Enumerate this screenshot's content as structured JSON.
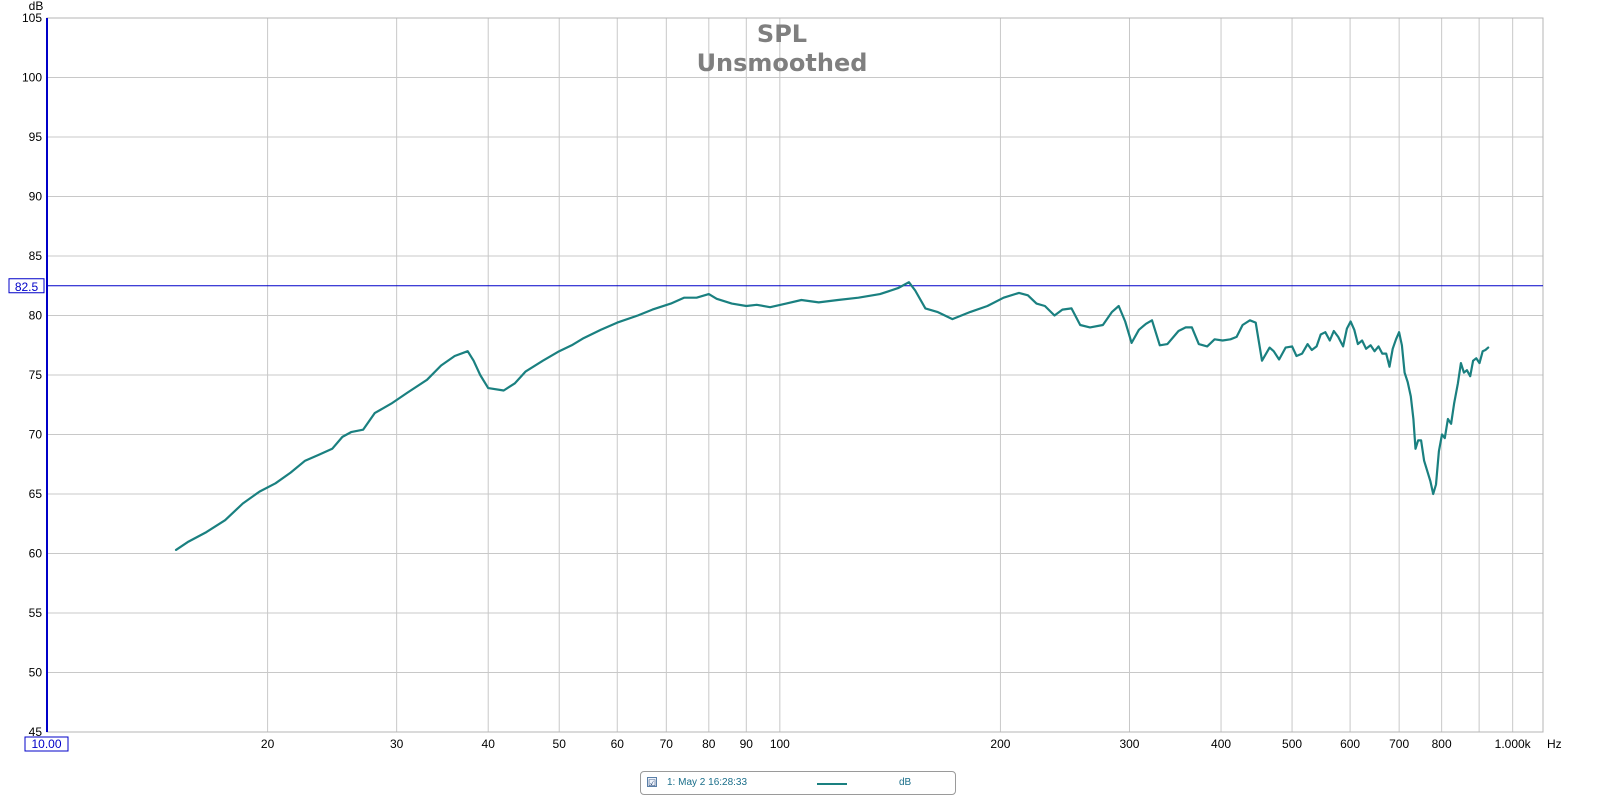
{
  "legend": {
    "checkbox": "☑",
    "name": "1: May 2 16:28:33",
    "unit": "dB"
  },
  "chart_data": {
    "type": "line",
    "title": "SPL",
    "subtitle": "Unsmoothed",
    "ylabel": "dB",
    "xunit": "Hz",
    "xscale": "log",
    "xlim": [
      10,
      1100
    ],
    "ylim": [
      45,
      105
    ],
    "yticks": [
      105,
      100,
      95,
      90,
      85,
      80,
      75,
      70,
      65,
      60,
      55,
      50,
      45
    ],
    "xtick_labels": [
      {
        "v": 20,
        "t": "20"
      },
      {
        "v": 30,
        "t": "30"
      },
      {
        "v": 40,
        "t": "40"
      },
      {
        "v": 50,
        "t": "50"
      },
      {
        "v": 60,
        "t": "60"
      },
      {
        "v": 70,
        "t": "70"
      },
      {
        "v": 80,
        "t": "80"
      },
      {
        "v": 90,
        "t": "90"
      },
      {
        "v": 100,
        "t": "100"
      },
      {
        "v": 200,
        "t": "200"
      },
      {
        "v": 300,
        "t": "300"
      },
      {
        "v": 400,
        "t": "400"
      },
      {
        "v": 500,
        "t": "500"
      },
      {
        "v": 600,
        "t": "600"
      },
      {
        "v": 700,
        "t": "700"
      },
      {
        "v": 800,
        "t": "800"
      },
      {
        "v": 1000,
        "t": "1.000k"
      }
    ],
    "grid_x": [
      20,
      30,
      40,
      50,
      60,
      70,
      80,
      90,
      100,
      200,
      300,
      400,
      500,
      600,
      700,
      800,
      900,
      1000
    ],
    "cursor": {
      "y": 82.5,
      "y_label": "82.5",
      "x_label": "10.00",
      "color": "#0000c8"
    },
    "grid": true,
    "legend_position": "bottom-center",
    "series": [
      {
        "color": "#1a8080",
        "points": [
          [
            15.0,
            60.3
          ],
          [
            15.6,
            61.0
          ],
          [
            16.5,
            61.8
          ],
          [
            17.5,
            62.8
          ],
          [
            18.5,
            64.2
          ],
          [
            19.5,
            65.2
          ],
          [
            20.5,
            65.9
          ],
          [
            21.5,
            66.8
          ],
          [
            22.5,
            67.8
          ],
          [
            23.5,
            68.3
          ],
          [
            24.5,
            68.8
          ],
          [
            25.3,
            69.8
          ],
          [
            26.0,
            70.2
          ],
          [
            27.0,
            70.4
          ],
          [
            28.0,
            71.8
          ],
          [
            29.5,
            72.6
          ],
          [
            31.0,
            73.5
          ],
          [
            33.0,
            74.6
          ],
          [
            34.5,
            75.8
          ],
          [
            36.0,
            76.6
          ],
          [
            37.5,
            77.0
          ],
          [
            38.2,
            76.2
          ],
          [
            39.0,
            75.0
          ],
          [
            40.0,
            73.9
          ],
          [
            42.0,
            73.7
          ],
          [
            43.5,
            74.3
          ],
          [
            45.0,
            75.3
          ],
          [
            47.5,
            76.2
          ],
          [
            50.0,
            77.0
          ],
          [
            52.0,
            77.5
          ],
          [
            54.0,
            78.1
          ],
          [
            57.0,
            78.8
          ],
          [
            60.0,
            79.4
          ],
          [
            64.0,
            80.0
          ],
          [
            67.0,
            80.5
          ],
          [
            71.0,
            81.0
          ],
          [
            74.0,
            81.5
          ],
          [
            77.0,
            81.5
          ],
          [
            80.0,
            81.8
          ],
          [
            82.0,
            81.4
          ],
          [
            86.0,
            81.0
          ],
          [
            90.0,
            80.8
          ],
          [
            93.0,
            80.9
          ],
          [
            97.0,
            80.7
          ],
          [
            102.0,
            81.0
          ],
          [
            107.0,
            81.3
          ],
          [
            113.0,
            81.1
          ],
          [
            120.0,
            81.3
          ],
          [
            128.0,
            81.5
          ],
          [
            137.0,
            81.8
          ],
          [
            145.0,
            82.3
          ],
          [
            150.0,
            82.8
          ],
          [
            153.0,
            82.1
          ],
          [
            158.0,
            80.6
          ],
          [
            164.0,
            80.3
          ],
          [
            172.0,
            79.7
          ],
          [
            182.0,
            80.3
          ],
          [
            192.0,
            80.8
          ],
          [
            202.0,
            81.5
          ],
          [
            212.0,
            81.9
          ],
          [
            218.0,
            81.7
          ],
          [
            224.0,
            81.0
          ],
          [
            230.0,
            80.8
          ],
          [
            237.0,
            80.0
          ],
          [
            243.0,
            80.5
          ],
          [
            250.0,
            80.6
          ],
          [
            257.0,
            79.2
          ],
          [
            265.0,
            79.0
          ],
          [
            276.0,
            79.2
          ],
          [
            284.0,
            80.3
          ],
          [
            290.0,
            80.8
          ],
          [
            296.0,
            79.5
          ],
          [
            302.0,
            77.7
          ],
          [
            309.0,
            78.8
          ],
          [
            316.0,
            79.3
          ],
          [
            322.0,
            79.6
          ],
          [
            330.0,
            77.5
          ],
          [
            338.0,
            77.6
          ],
          [
            350.0,
            78.7
          ],
          [
            358.0,
            79.0
          ],
          [
            365.0,
            79.0
          ],
          [
            373.0,
            77.6
          ],
          [
            383.0,
            77.4
          ],
          [
            392.0,
            78.0
          ],
          [
            402.0,
            77.9
          ],
          [
            412.0,
            78.0
          ],
          [
            420.0,
            78.2
          ],
          [
            428.0,
            79.2
          ],
          [
            438.0,
            79.6
          ],
          [
            446.0,
            79.4
          ],
          [
            455.0,
            76.2
          ],
          [
            466.0,
            77.3
          ],
          [
            472.0,
            77.0
          ],
          [
            480.0,
            76.3
          ],
          [
            490.0,
            77.3
          ],
          [
            500.0,
            77.4
          ],
          [
            507.0,
            76.6
          ],
          [
            516.0,
            76.8
          ],
          [
            525.0,
            77.6
          ],
          [
            532.0,
            77.1
          ],
          [
            540.0,
            77.4
          ],
          [
            547.0,
            78.4
          ],
          [
            555.0,
            78.6
          ],
          [
            563.0,
            77.9
          ],
          [
            570.0,
            78.7
          ],
          [
            578.0,
            78.2
          ],
          [
            587.0,
            77.4
          ],
          [
            594.0,
            78.9
          ],
          [
            601.0,
            79.5
          ],
          [
            608.0,
            78.8
          ],
          [
            615.0,
            77.6
          ],
          [
            623.0,
            77.9
          ],
          [
            631.0,
            77.2
          ],
          [
            640.0,
            77.5
          ],
          [
            648.0,
            77.0
          ],
          [
            656.0,
            77.4
          ],
          [
            664.0,
            76.8
          ],
          [
            672.0,
            76.8
          ],
          [
            679.0,
            75.7
          ],
          [
            686.0,
            77.2
          ],
          [
            693.0,
            78.0
          ],
          [
            700.0,
            78.6
          ],
          [
            706.0,
            77.5
          ],
          [
            712.0,
            75.2
          ],
          [
            719.0,
            74.4
          ],
          [
            726.0,
            73.2
          ],
          [
            732.0,
            71.3
          ],
          [
            737.0,
            68.8
          ],
          [
            743.0,
            69.5
          ],
          [
            750.0,
            69.5
          ],
          [
            757.0,
            67.8
          ],
          [
            765.0,
            66.9
          ],
          [
            772.0,
            66.1
          ],
          [
            779.0,
            65.0
          ],
          [
            786.0,
            65.8
          ],
          [
            793.0,
            68.6
          ],
          [
            801.0,
            70.0
          ],
          [
            808.0,
            69.7
          ],
          [
            816.0,
            71.3
          ],
          [
            824.0,
            70.9
          ],
          [
            832.0,
            72.6
          ],
          [
            842.0,
            74.3
          ],
          [
            850.0,
            76.0
          ],
          [
            858.0,
            75.2
          ],
          [
            866.0,
            75.4
          ],
          [
            875.0,
            74.9
          ],
          [
            883.0,
            76.2
          ],
          [
            892.0,
            76.4
          ],
          [
            901.0,
            76.0
          ],
          [
            910.0,
            77.0
          ],
          [
            918.0,
            77.1
          ],
          [
            926.0,
            77.3
          ]
        ]
      }
    ]
  }
}
